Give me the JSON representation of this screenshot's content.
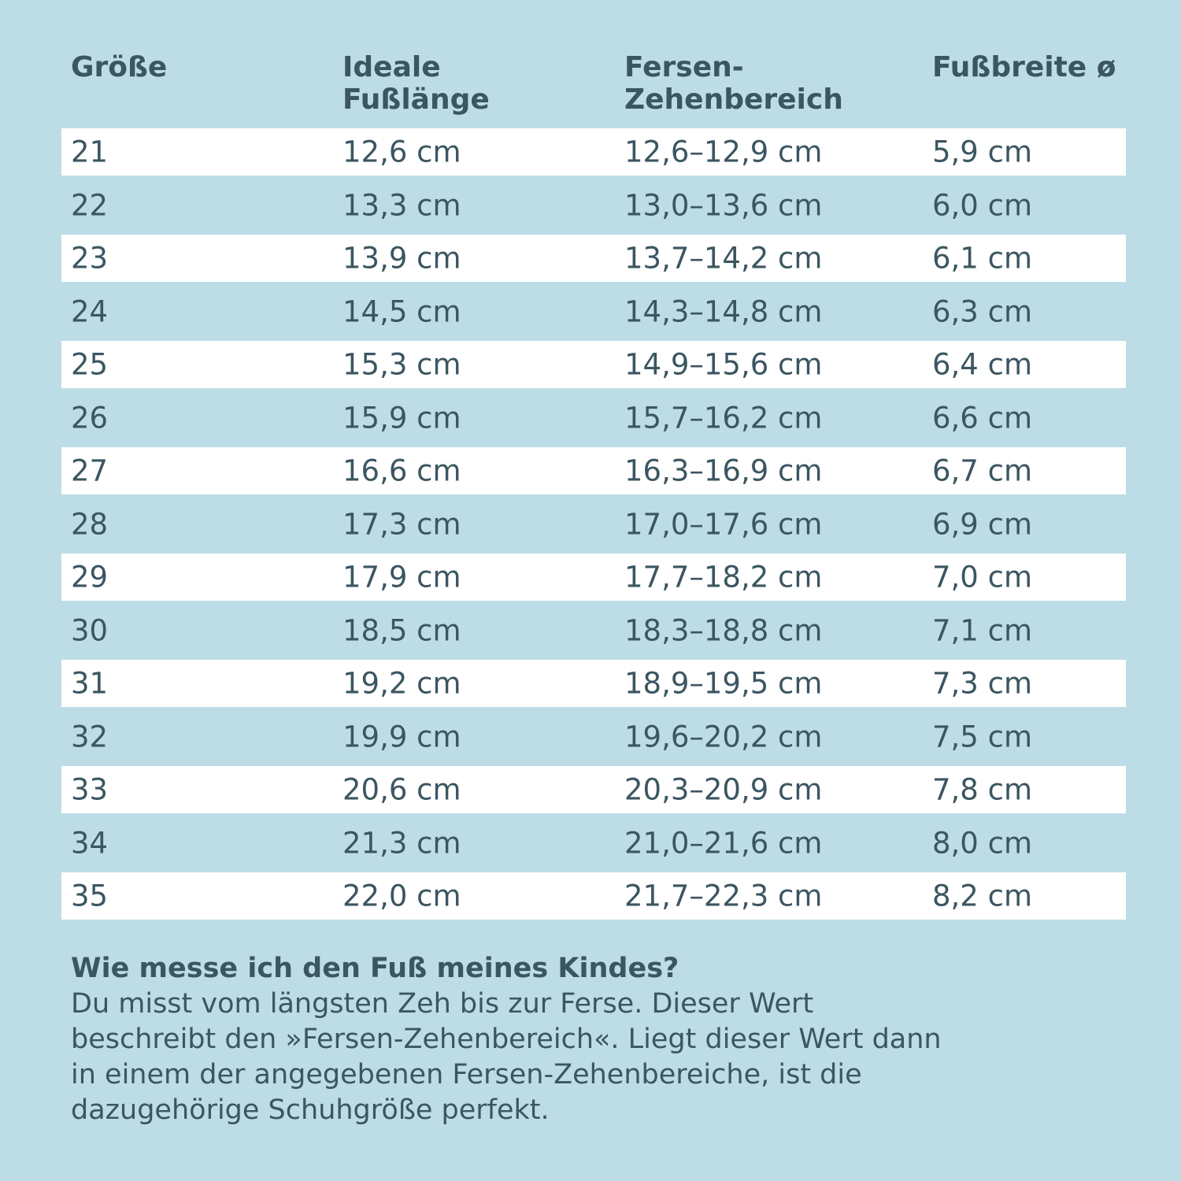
{
  "table": {
    "header": [
      [
        "Größe"
      ],
      [
        "Ideale",
        "Fußlänge"
      ],
      [
        "Fersen-",
        "Zehenbereich"
      ],
      [
        "Fußbreite ø"
      ]
    ],
    "rows": [
      [
        "21",
        "12,6 cm",
        "12,6–12,9 cm",
        "5,9 cm"
      ],
      [
        "22",
        "13,3 cm",
        "13,0–13,6 cm",
        "6,0 cm"
      ],
      [
        "23",
        "13,9 cm",
        "13,7–14,2 cm",
        "6,1 cm"
      ],
      [
        "24",
        "14,5 cm",
        "14,3–14,8 cm",
        "6,3 cm"
      ],
      [
        "25",
        "15,3 cm",
        "14,9–15,6 cm",
        "6,4 cm"
      ],
      [
        "26",
        "15,9 cm",
        "15,7–16,2 cm",
        "6,6 cm"
      ],
      [
        "27",
        "16,6 cm",
        "16,3–16,9 cm",
        "6,7 cm"
      ],
      [
        "28",
        "17,3 cm",
        "17,0–17,6 cm",
        "6,9 cm"
      ],
      [
        "29",
        "17,9 cm",
        "17,7–18,2 cm",
        "7,0 cm"
      ],
      [
        "30",
        "18,5 cm",
        "18,3–18,8 cm",
        "7,1 cm"
      ],
      [
        "31",
        "19,2 cm",
        "18,9–19,5 cm",
        "7,3 cm"
      ],
      [
        "32",
        "19,9 cm",
        "19,6–20,2 cm",
        "7,5 cm"
      ],
      [
        "33",
        "20,6 cm",
        "20,3–20,9 cm",
        "7,8 cm"
      ],
      [
        "34",
        "21,3 cm",
        "21,0–21,6 cm",
        "8,0 cm"
      ],
      [
        "35",
        "22,0 cm",
        "21,7–22,3 cm",
        "8,2 cm"
      ]
    ]
  },
  "note": {
    "title": "Wie messe ich den Fuß meines Kindes?",
    "lines": [
      "Du misst vom längsten Zeh bis zur Ferse. Dieser Wert",
      "beschreibt den »Fersen-Zehenbereich«. Liegt dieser Wert dann",
      "in einem der angegebenen Fersen-Zehenbereiche, ist die",
      "dazugehörige Schuhgröße perfekt."
    ]
  }
}
